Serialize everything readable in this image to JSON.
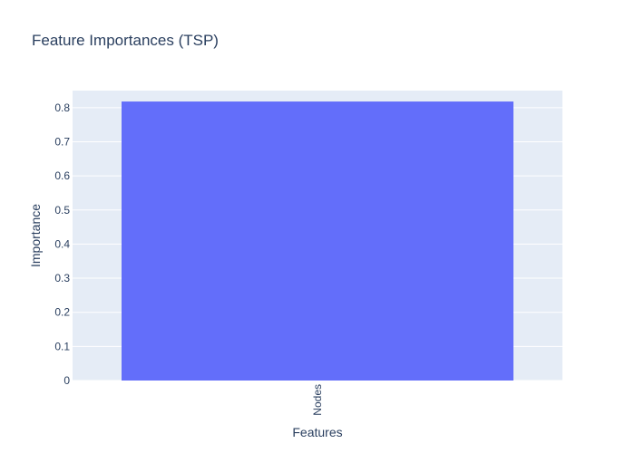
{
  "chart_data": {
    "type": "bar",
    "title": "Feature Importances (TSP)",
    "xlabel": "Features",
    "ylabel": "Importance",
    "categories": [
      "Nodes"
    ],
    "values": [
      0.818
    ],
    "ylim": [
      0,
      0.85
    ],
    "yticks": [
      0,
      0.1,
      0.2,
      0.3,
      0.4,
      0.5,
      0.6,
      0.7,
      0.8
    ],
    "ytick_labels": [
      "0",
      "0.1",
      "0.2",
      "0.3",
      "0.4",
      "0.5",
      "0.6",
      "0.7",
      "0.8"
    ],
    "grid": true,
    "legend": "none",
    "colors": {
      "bar": "#636efa",
      "plot_background": "#e5ecf6",
      "text": "#2a3f5f",
      "grid": "#ffffff"
    }
  }
}
